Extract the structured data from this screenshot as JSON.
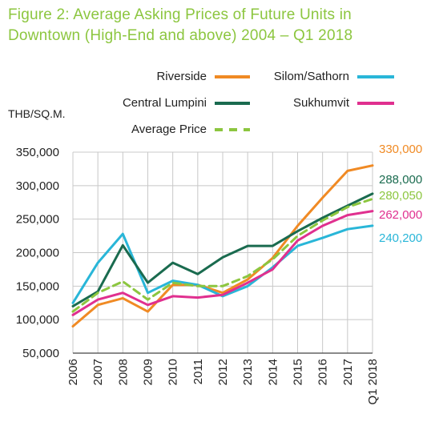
{
  "title_line1": "Figure 2: Average Asking Prices of Future Units in",
  "title_line2": "Downtown (High-End and above) 2004 – Q1 2018",
  "chart_data": {
    "type": "line",
    "ylabel": "THB/SQ.M.",
    "ylim": [
      50000,
      350000
    ],
    "yticks": [
      "350,000",
      "300,000",
      "250,000",
      "200,000",
      "150,000",
      "100,000",
      "50,000"
    ],
    "ytick_values": [
      350000,
      300000,
      250000,
      200000,
      150000,
      100000,
      50000
    ],
    "categories": [
      "2006",
      "2007",
      "2008",
      "2009",
      "2010",
      "2011",
      "2012",
      "2013",
      "2014",
      "2015",
      "2016",
      "2017",
      "Q1 2018"
    ],
    "grid": true,
    "series": [
      {
        "name": "Riverside",
        "color": "#f08a24",
        "dash": false,
        "values": [
          90000,
          122000,
          132000,
          112000,
          152000,
          152000,
          140000,
          160000,
          192000,
          240000,
          282000,
          322000,
          330000
        ],
        "end_label": "330,000"
      },
      {
        "name": "Silom/Sathorn",
        "color": "#29b6d8",
        "dash": false,
        "values": [
          125000,
          185000,
          228000,
          140000,
          158000,
          152000,
          135000,
          150000,
          178000,
          210000,
          222000,
          235000,
          240200
        ],
        "end_label": "240,200"
      },
      {
        "name": "Central Lumpini",
        "color": "#1a6b4f",
        "dash": false,
        "values": [
          120000,
          142000,
          211000,
          155000,
          185000,
          168000,
          193000,
          210000,
          210000,
          232000,
          252000,
          270000,
          288000
        ],
        "end_label": "288,000"
      },
      {
        "name": "Sukhumvit",
        "color": "#e0308f",
        "dash": false,
        "values": [
          107000,
          130000,
          140000,
          122000,
          135000,
          133000,
          137000,
          155000,
          175000,
          218000,
          240000,
          256000,
          262000
        ],
        "end_label": "262,000"
      },
      {
        "name": "Average Price",
        "color": "#8cc63f",
        "dash": true,
        "values": [
          112000,
          140000,
          157000,
          130000,
          155000,
          150000,
          150000,
          165000,
          190000,
          225000,
          248000,
          268000,
          280050
        ],
        "end_label": "280,050"
      }
    ]
  }
}
